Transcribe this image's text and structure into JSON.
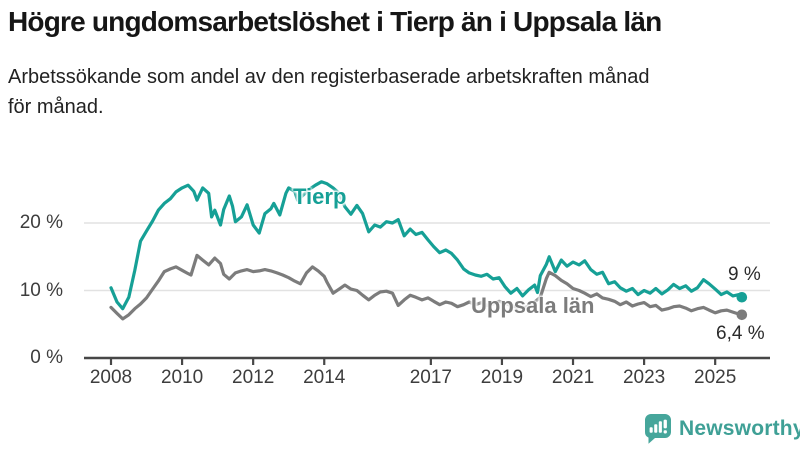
{
  "header": {
    "title": "Högre ungdomsarbetslöshet i Tierp än i Uppsala län",
    "subtitle": "Arbetssökande som andel av den registerbaserade arbetskraften månad för månad.",
    "subtitle_lines": [
      "Arbetssökande som andel av den registerbaserade arbetskraften månad",
      "för månad."
    ]
  },
  "footer": {
    "brand": "Newsworthy",
    "brand_color": "#3fa096",
    "icon_color": "#46a69b"
  },
  "chart_data": {
    "type": "line",
    "title": "Högre ungdomsarbetslöshet i Tierp än i Uppsala län",
    "xlabel": "",
    "ylabel": "",
    "unit": "%",
    "grid": "horizontal",
    "xlim": [
      2007.35,
      2026.55
    ],
    "ylim": [
      0,
      27.5
    ],
    "y_ticks": [
      {
        "value": 0,
        "label": "0 %"
      },
      {
        "value": 10,
        "label": "10 %"
      },
      {
        "value": 20,
        "label": "20 %"
      }
    ],
    "x_ticks": [
      {
        "value": 2008,
        "label": "2008"
      },
      {
        "value": 2010,
        "label": "2010"
      },
      {
        "value": 2012,
        "label": "2012"
      },
      {
        "value": 2014,
        "label": "2014"
      },
      {
        "value": 2017,
        "label": "2017"
      },
      {
        "value": 2019,
        "label": "2019"
      },
      {
        "value": 2021,
        "label": "2021"
      },
      {
        "value": 2023,
        "label": "2023"
      },
      {
        "value": 2025,
        "label": "2025"
      }
    ],
    "series": [
      {
        "name": "Uppsala län",
        "color": "#7c7c7c",
        "end_label": "6,4 %",
        "last_value": 6.4,
        "points": [
          [
            2008.0,
            7.5
          ],
          [
            2008.17,
            6.6
          ],
          [
            2008.33,
            5.8
          ],
          [
            2008.5,
            6.4
          ],
          [
            2008.67,
            7.3
          ],
          [
            2008.83,
            8.0
          ],
          [
            2009.0,
            8.9
          ],
          [
            2009.17,
            10.2
          ],
          [
            2009.33,
            11.4
          ],
          [
            2009.5,
            12.8
          ],
          [
            2009.67,
            13.2
          ],
          [
            2009.83,
            13.5
          ],
          [
            2010.0,
            13.0
          ],
          [
            2010.17,
            12.5
          ],
          [
            2010.25,
            12.3
          ],
          [
            2010.42,
            15.2
          ],
          [
            2010.58,
            14.5
          ],
          [
            2010.75,
            13.8
          ],
          [
            2010.92,
            14.8
          ],
          [
            2011.08,
            14.0
          ],
          [
            2011.17,
            12.4
          ],
          [
            2011.33,
            11.7
          ],
          [
            2011.5,
            12.6
          ],
          [
            2011.67,
            12.9
          ],
          [
            2011.83,
            13.1
          ],
          [
            2012.0,
            12.8
          ],
          [
            2012.17,
            12.9
          ],
          [
            2012.33,
            13.1
          ],
          [
            2012.5,
            12.9
          ],
          [
            2012.67,
            12.6
          ],
          [
            2012.83,
            12.3
          ],
          [
            2013.0,
            11.9
          ],
          [
            2013.17,
            11.4
          ],
          [
            2013.33,
            11.0
          ],
          [
            2013.5,
            12.6
          ],
          [
            2013.67,
            13.5
          ],
          [
            2013.83,
            12.9
          ],
          [
            2014.0,
            12.1
          ],
          [
            2014.08,
            11.2
          ],
          [
            2014.25,
            9.6
          ],
          [
            2014.42,
            10.2
          ],
          [
            2014.58,
            10.8
          ],
          [
            2014.75,
            10.2
          ],
          [
            2014.92,
            10.0
          ],
          [
            2015.08,
            9.3
          ],
          [
            2015.25,
            8.6
          ],
          [
            2015.42,
            9.3
          ],
          [
            2015.58,
            9.8
          ],
          [
            2015.75,
            9.9
          ],
          [
            2015.92,
            9.6
          ],
          [
            2016.08,
            7.8
          ],
          [
            2016.25,
            8.6
          ],
          [
            2016.42,
            9.3
          ],
          [
            2016.58,
            9.0
          ],
          [
            2016.75,
            8.6
          ],
          [
            2016.92,
            8.9
          ],
          [
            2017.08,
            8.4
          ],
          [
            2017.25,
            7.9
          ],
          [
            2017.42,
            8.3
          ],
          [
            2017.58,
            8.1
          ],
          [
            2017.75,
            7.6
          ],
          [
            2017.92,
            7.9
          ],
          [
            2018.08,
            8.3
          ],
          [
            2018.25,
            7.9
          ],
          [
            2018.42,
            8.2
          ],
          [
            2018.58,
            7.8
          ],
          [
            2018.75,
            8.0
          ],
          [
            2018.92,
            8.4
          ],
          [
            2019.08,
            8.1
          ],
          [
            2019.25,
            7.8
          ],
          [
            2019.42,
            7.5
          ],
          [
            2019.58,
            7.3
          ],
          [
            2019.75,
            7.7
          ],
          [
            2019.92,
            8.3
          ],
          [
            2020.08,
            9.0
          ],
          [
            2020.25,
            11.8
          ],
          [
            2020.33,
            12.7
          ],
          [
            2020.5,
            12.2
          ],
          [
            2020.67,
            11.5
          ],
          [
            2020.83,
            11.0
          ],
          [
            2021.0,
            10.3
          ],
          [
            2021.17,
            10.0
          ],
          [
            2021.33,
            9.6
          ],
          [
            2021.5,
            9.1
          ],
          [
            2021.67,
            9.5
          ],
          [
            2021.83,
            8.9
          ],
          [
            2022.0,
            8.7
          ],
          [
            2022.17,
            8.4
          ],
          [
            2022.33,
            7.9
          ],
          [
            2022.5,
            8.3
          ],
          [
            2022.67,
            7.7
          ],
          [
            2022.83,
            8.0
          ],
          [
            2023.0,
            8.2
          ],
          [
            2023.17,
            7.6
          ],
          [
            2023.33,
            7.8
          ],
          [
            2023.5,
            7.1
          ],
          [
            2023.67,
            7.3
          ],
          [
            2023.83,
            7.6
          ],
          [
            2024.0,
            7.7
          ],
          [
            2024.17,
            7.4
          ],
          [
            2024.33,
            7.0
          ],
          [
            2024.5,
            7.3
          ],
          [
            2024.67,
            7.5
          ],
          [
            2024.83,
            7.1
          ],
          [
            2025.0,
            6.7
          ],
          [
            2025.17,
            7.0
          ],
          [
            2025.33,
            7.1
          ],
          [
            2025.5,
            6.8
          ],
          [
            2025.67,
            6.5
          ],
          [
            2025.75,
            6.4
          ]
        ]
      },
      {
        "name": "Tierp",
        "color": "#16a096",
        "end_label": "9 %",
        "last_value": 9.0,
        "points": [
          [
            2008.0,
            10.4
          ],
          [
            2008.17,
            8.3
          ],
          [
            2008.33,
            7.3
          ],
          [
            2008.5,
            9.0
          ],
          [
            2008.67,
            13.0
          ],
          [
            2008.83,
            17.3
          ],
          [
            2009.0,
            18.8
          ],
          [
            2009.17,
            20.3
          ],
          [
            2009.33,
            21.9
          ],
          [
            2009.5,
            22.9
          ],
          [
            2009.67,
            23.6
          ],
          [
            2009.83,
            24.6
          ],
          [
            2010.0,
            25.2
          ],
          [
            2010.17,
            25.6
          ],
          [
            2010.33,
            24.7
          ],
          [
            2010.42,
            23.4
          ],
          [
            2010.58,
            25.2
          ],
          [
            2010.75,
            24.4
          ],
          [
            2010.83,
            20.9
          ],
          [
            2010.92,
            21.9
          ],
          [
            2011.08,
            19.7
          ],
          [
            2011.17,
            22.0
          ],
          [
            2011.33,
            24.0
          ],
          [
            2011.42,
            22.5
          ],
          [
            2011.5,
            20.2
          ],
          [
            2011.67,
            20.9
          ],
          [
            2011.83,
            22.7
          ],
          [
            2012.0,
            19.7
          ],
          [
            2012.17,
            18.5
          ],
          [
            2012.33,
            21.4
          ],
          [
            2012.5,
            22.1
          ],
          [
            2012.58,
            22.9
          ],
          [
            2012.75,
            21.2
          ],
          [
            2012.92,
            24.4
          ],
          [
            2013.0,
            25.2
          ],
          [
            2013.17,
            24.7
          ],
          [
            2013.25,
            23.4
          ],
          [
            2013.42,
            24.2
          ],
          [
            2013.58,
            25.0
          ],
          [
            2013.75,
            25.6
          ],
          [
            2013.92,
            26.1
          ],
          [
            2014.08,
            25.8
          ],
          [
            2014.25,
            25.2
          ],
          [
            2014.42,
            24.4
          ],
          [
            2014.58,
            22.4
          ],
          [
            2014.75,
            21.3
          ],
          [
            2014.92,
            22.6
          ],
          [
            2015.08,
            21.4
          ],
          [
            2015.25,
            18.7
          ],
          [
            2015.42,
            19.7
          ],
          [
            2015.58,
            19.4
          ],
          [
            2015.75,
            20.2
          ],
          [
            2015.92,
            20.0
          ],
          [
            2016.08,
            20.5
          ],
          [
            2016.25,
            18.1
          ],
          [
            2016.42,
            19.1
          ],
          [
            2016.58,
            18.3
          ],
          [
            2016.75,
            18.6
          ],
          [
            2016.92,
            17.5
          ],
          [
            2017.08,
            16.5
          ],
          [
            2017.25,
            15.6
          ],
          [
            2017.42,
            16.0
          ],
          [
            2017.58,
            15.5
          ],
          [
            2017.75,
            14.5
          ],
          [
            2017.92,
            13.2
          ],
          [
            2018.08,
            12.6
          ],
          [
            2018.25,
            12.3
          ],
          [
            2018.42,
            12.1
          ],
          [
            2018.58,
            12.4
          ],
          [
            2018.75,
            11.7
          ],
          [
            2018.92,
            11.9
          ],
          [
            2019.08,
            10.6
          ],
          [
            2019.25,
            9.6
          ],
          [
            2019.42,
            10.3
          ],
          [
            2019.58,
            9.2
          ],
          [
            2019.75,
            10.1
          ],
          [
            2019.92,
            10.8
          ],
          [
            2020.0,
            9.7
          ],
          [
            2020.08,
            12.2
          ],
          [
            2020.25,
            13.9
          ],
          [
            2020.33,
            15.0
          ],
          [
            2020.5,
            12.8
          ],
          [
            2020.67,
            14.5
          ],
          [
            2020.83,
            13.6
          ],
          [
            2021.0,
            14.2
          ],
          [
            2021.17,
            13.8
          ],
          [
            2021.33,
            14.4
          ],
          [
            2021.5,
            13.1
          ],
          [
            2021.67,
            12.4
          ],
          [
            2021.83,
            12.7
          ],
          [
            2022.0,
            11.0
          ],
          [
            2022.17,
            11.3
          ],
          [
            2022.33,
            10.4
          ],
          [
            2022.5,
            9.9
          ],
          [
            2022.67,
            10.3
          ],
          [
            2022.83,
            9.4
          ],
          [
            2023.0,
            10.0
          ],
          [
            2023.17,
            9.6
          ],
          [
            2023.33,
            10.3
          ],
          [
            2023.5,
            9.5
          ],
          [
            2023.67,
            10.1
          ],
          [
            2023.83,
            10.9
          ],
          [
            2024.0,
            10.3
          ],
          [
            2024.17,
            10.7
          ],
          [
            2024.33,
            9.9
          ],
          [
            2024.5,
            10.4
          ],
          [
            2024.67,
            11.6
          ],
          [
            2024.83,
            11.0
          ],
          [
            2025.0,
            10.2
          ],
          [
            2025.17,
            9.4
          ],
          [
            2025.33,
            9.8
          ],
          [
            2025.5,
            9.2
          ],
          [
            2025.67,
            9.4
          ],
          [
            2025.75,
            9.0
          ]
        ]
      }
    ]
  }
}
